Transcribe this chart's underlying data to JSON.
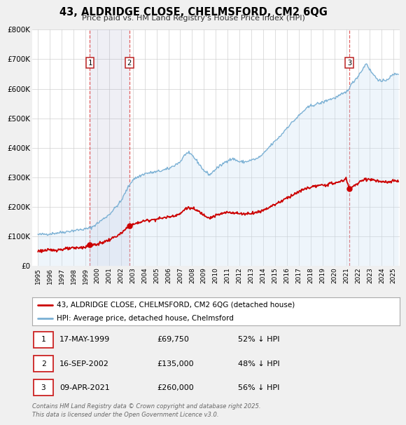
{
  "title": "43, ALDRIDGE CLOSE, CHELMSFORD, CM2 6QG",
  "subtitle": "Price paid vs. HM Land Registry's House Price Index (HPI)",
  "legend_line1": "43, ALDRIDGE CLOSE, CHELMSFORD, CM2 6QG (detached house)",
  "legend_line2": "HPI: Average price, detached house, Chelmsford",
  "footer": "Contains HM Land Registry data © Crown copyright and database right 2025.\nThis data is licensed under the Open Government Licence v3.0.",
  "sale_color": "#cc0000",
  "hpi_color": "#7ab0d4",
  "hpi_fill_color": "#c8dff5",
  "bg_color": "#f0f0f0",
  "plot_bg_color": "#ffffff",
  "grid_color": "#cccccc",
  "vline_color": "#dd4444",
  "transactions": [
    {
      "date": 1999.38,
      "price": 69750,
      "label": "1",
      "hpi_pct": "52% ↓ HPI",
      "date_str": "17-MAY-1999",
      "price_str": "£69,750"
    },
    {
      "date": 2002.71,
      "price": 135000,
      "label": "2",
      "hpi_pct": "48% ↓ HPI",
      "date_str": "16-SEP-2002",
      "price_str": "£135,000"
    },
    {
      "date": 2021.27,
      "price": 260000,
      "label": "3",
      "hpi_pct": "56% ↓ HPI",
      "date_str": "09-APR-2021",
      "price_str": "£260,000"
    }
  ],
  "ylim": [
    0,
    800000
  ],
  "xlim": [
    1994.5,
    2025.5
  ],
  "yticks": [
    0,
    100000,
    200000,
    300000,
    400000,
    500000,
    600000,
    700000,
    800000
  ],
  "ytick_labels": [
    "£0",
    "£100K",
    "£200K",
    "£300K",
    "£400K",
    "£500K",
    "£600K",
    "£700K",
    "£800K"
  ],
  "hpi_anchors": [
    [
      1995.0,
      105000
    ],
    [
      1996.0,
      108000
    ],
    [
      1997.0,
      113000
    ],
    [
      1998.0,
      119000
    ],
    [
      1999.0,
      124000
    ],
    [
      1999.5,
      129000
    ],
    [
      2000.0,
      143000
    ],
    [
      2001.0,
      173000
    ],
    [
      2002.0,
      218000
    ],
    [
      2002.5,
      258000
    ],
    [
      2003.0,
      292000
    ],
    [
      2004.0,
      312000
    ],
    [
      2005.0,
      318000
    ],
    [
      2006.0,
      328000
    ],
    [
      2007.0,
      352000
    ],
    [
      2007.5,
      382000
    ],
    [
      2008.0,
      375000
    ],
    [
      2008.5,
      350000
    ],
    [
      2009.0,
      322000
    ],
    [
      2009.5,
      308000
    ],
    [
      2010.0,
      328000
    ],
    [
      2010.5,
      342000
    ],
    [
      2011.0,
      358000
    ],
    [
      2011.5,
      362000
    ],
    [
      2012.0,
      352000
    ],
    [
      2012.5,
      352000
    ],
    [
      2013.0,
      358000
    ],
    [
      2013.5,
      363000
    ],
    [
      2014.0,
      378000
    ],
    [
      2014.5,
      402000
    ],
    [
      2015.0,
      422000
    ],
    [
      2015.5,
      442000
    ],
    [
      2016.0,
      468000
    ],
    [
      2016.5,
      488000
    ],
    [
      2017.0,
      508000
    ],
    [
      2017.5,
      528000
    ],
    [
      2018.0,
      542000
    ],
    [
      2018.5,
      548000
    ],
    [
      2019.0,
      553000
    ],
    [
      2019.5,
      563000
    ],
    [
      2020.0,
      568000
    ],
    [
      2020.5,
      578000
    ],
    [
      2021.0,
      588000
    ],
    [
      2021.5,
      618000
    ],
    [
      2022.0,
      643000
    ],
    [
      2022.5,
      673000
    ],
    [
      2022.7,
      688000
    ],
    [
      2023.0,
      663000
    ],
    [
      2023.5,
      638000
    ],
    [
      2024.0,
      623000
    ],
    [
      2024.5,
      633000
    ],
    [
      2025.0,
      648000
    ],
    [
      2025.4,
      652000
    ]
  ],
  "sale_anchors": [
    [
      1995.0,
      50000
    ],
    [
      1996.0,
      52000
    ],
    [
      1997.0,
      55000
    ],
    [
      1998.0,
      59000
    ],
    [
      1999.0,
      63000
    ],
    [
      1999.38,
      69750
    ],
    [
      2000.0,
      72000
    ],
    [
      2001.0,
      87000
    ],
    [
      2002.0,
      108000
    ],
    [
      2002.71,
      135000
    ],
    [
      2003.0,
      139000
    ],
    [
      2003.5,
      146000
    ],
    [
      2004.0,
      152000
    ],
    [
      2005.0,
      158000
    ],
    [
      2006.0,
      165000
    ],
    [
      2007.0,
      175000
    ],
    [
      2007.5,
      196000
    ],
    [
      2008.0,
      194000
    ],
    [
      2008.5,
      185000
    ],
    [
      2009.0,
      172000
    ],
    [
      2009.5,
      162000
    ],
    [
      2010.0,
      170000
    ],
    [
      2010.5,
      176000
    ],
    [
      2011.0,
      181000
    ],
    [
      2011.5,
      180000
    ],
    [
      2012.0,
      176000
    ],
    [
      2012.5,
      176000
    ],
    [
      2013.0,
      178000
    ],
    [
      2013.5,
      181000
    ],
    [
      2014.0,
      188000
    ],
    [
      2014.5,
      198000
    ],
    [
      2015.0,
      208000
    ],
    [
      2015.5,
      218000
    ],
    [
      2016.0,
      230000
    ],
    [
      2016.5,
      240000
    ],
    [
      2017.0,
      250000
    ],
    [
      2017.5,
      260000
    ],
    [
      2018.0,
      266000
    ],
    [
      2018.5,
      270000
    ],
    [
      2019.0,
      272000
    ],
    [
      2019.5,
      276000
    ],
    [
      2020.0,
      280000
    ],
    [
      2020.5,
      284000
    ],
    [
      2021.0,
      295000
    ],
    [
      2021.27,
      260000
    ],
    [
      2021.5,
      268000
    ],
    [
      2022.0,
      278000
    ],
    [
      2022.5,
      293000
    ],
    [
      2023.0,
      293000
    ],
    [
      2023.5,
      288000
    ],
    [
      2024.0,
      283000
    ],
    [
      2024.5,
      283000
    ],
    [
      2025.0,
      286000
    ],
    [
      2025.4,
      288000
    ]
  ]
}
